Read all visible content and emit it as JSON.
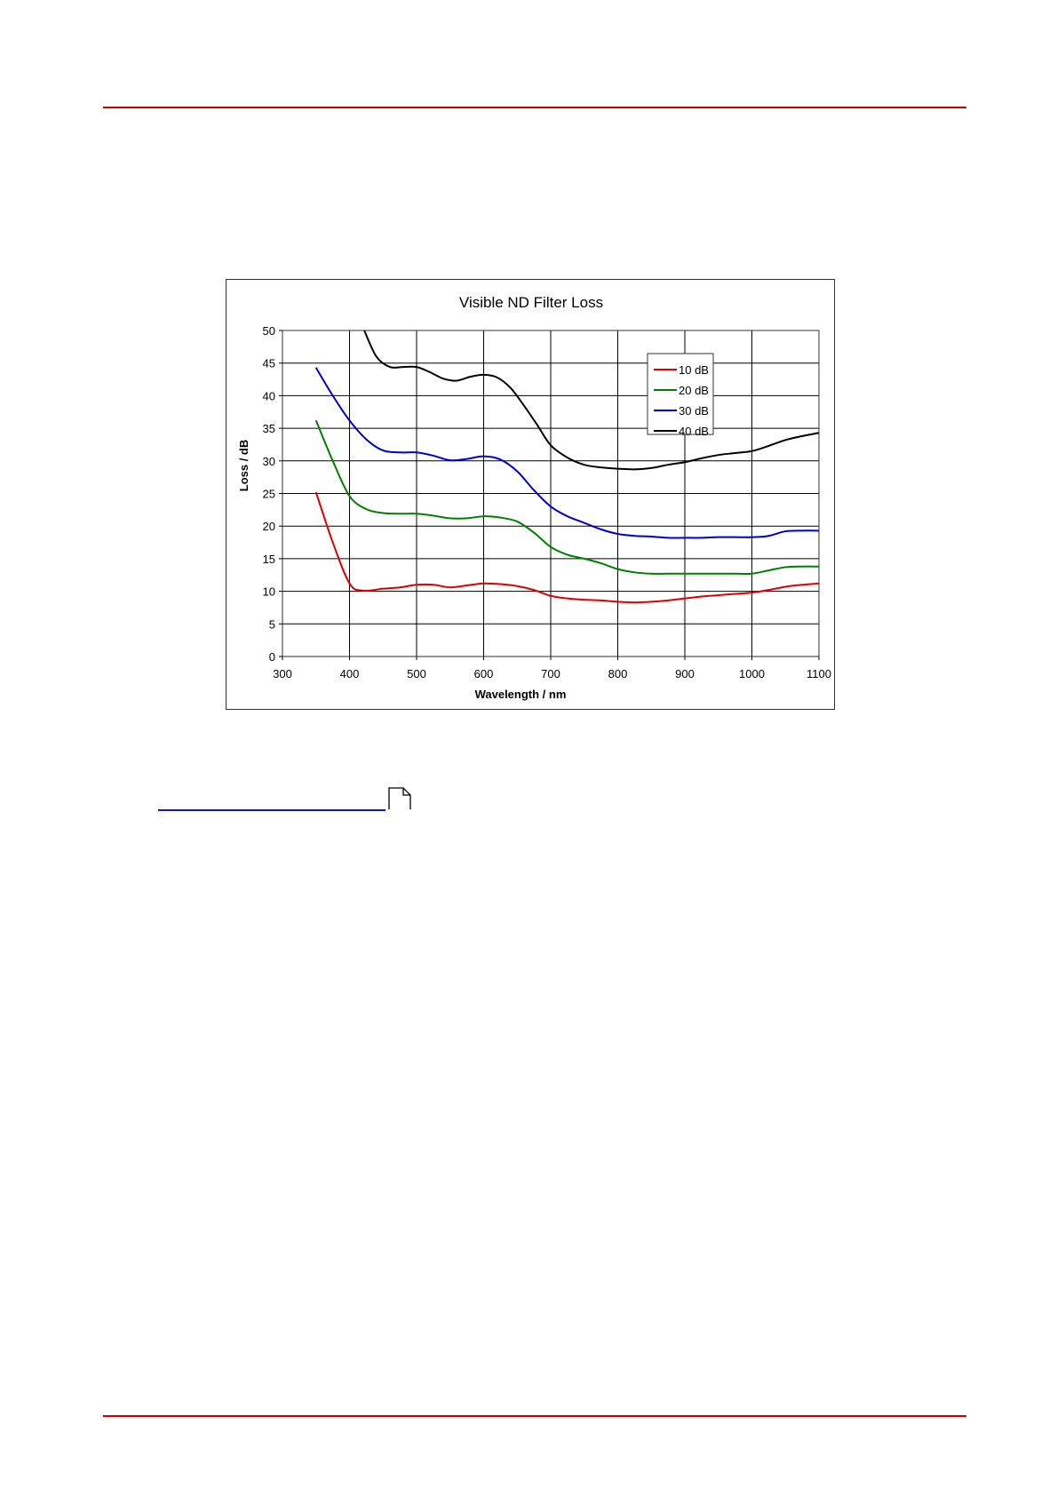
{
  "colors": {
    "rule": "#cc0000",
    "footnote_rule": "#1a1a9a",
    "series": [
      "#dd0000",
      "#008000",
      "#0000cc",
      "#000000"
    ]
  },
  "icons": {
    "footnote": "document-icon"
  },
  "chart_data": {
    "type": "line",
    "title": "Visible ND Filter Loss",
    "xlabel": "Wavelength / nm",
    "ylabel": "Loss / dB",
    "xlim": [
      300,
      1100
    ],
    "ylim": [
      0,
      50
    ],
    "xticks": [
      300,
      400,
      500,
      600,
      700,
      800,
      900,
      1000,
      1100
    ],
    "yticks": [
      0,
      5,
      10,
      15,
      20,
      25,
      30,
      35,
      40,
      45,
      50
    ],
    "grid": true,
    "legend_position": "top-right",
    "series": [
      {
        "name": "10 dB",
        "color": "#dd0000",
        "points": [
          [
            350,
            25.2
          ],
          [
            375,
            17.5
          ],
          [
            400,
            11.2
          ],
          [
            420,
            10.1
          ],
          [
            450,
            10.4
          ],
          [
            475,
            10.6
          ],
          [
            500,
            11.0
          ],
          [
            525,
            11.0
          ],
          [
            550,
            10.6
          ],
          [
            575,
            10.9
          ],
          [
            600,
            11.2
          ],
          [
            625,
            11.1
          ],
          [
            650,
            10.8
          ],
          [
            675,
            10.2
          ],
          [
            700,
            9.3
          ],
          [
            725,
            8.9
          ],
          [
            750,
            8.7
          ],
          [
            775,
            8.6
          ],
          [
            800,
            8.4
          ],
          [
            825,
            8.3
          ],
          [
            850,
            8.4
          ],
          [
            875,
            8.6
          ],
          [
            900,
            8.9
          ],
          [
            925,
            9.2
          ],
          [
            950,
            9.4
          ],
          [
            975,
            9.6
          ],
          [
            1000,
            9.8
          ],
          [
            1025,
            10.2
          ],
          [
            1050,
            10.7
          ],
          [
            1075,
            11.0
          ],
          [
            1100,
            11.2
          ]
        ]
      },
      {
        "name": "20 dB",
        "color": "#008000",
        "points": [
          [
            350,
            36.2
          ],
          [
            375,
            30.0
          ],
          [
            400,
            24.6
          ],
          [
            425,
            22.6
          ],
          [
            450,
            22.0
          ],
          [
            475,
            21.9
          ],
          [
            500,
            21.9
          ],
          [
            525,
            21.6
          ],
          [
            550,
            21.2
          ],
          [
            575,
            21.2
          ],
          [
            600,
            21.5
          ],
          [
            625,
            21.3
          ],
          [
            650,
            20.7
          ],
          [
            675,
            19.0
          ],
          [
            700,
            16.8
          ],
          [
            725,
            15.6
          ],
          [
            750,
            15.0
          ],
          [
            775,
            14.3
          ],
          [
            800,
            13.4
          ],
          [
            825,
            12.9
          ],
          [
            850,
            12.7
          ],
          [
            875,
            12.7
          ],
          [
            900,
            12.7
          ],
          [
            925,
            12.7
          ],
          [
            950,
            12.7
          ],
          [
            975,
            12.7
          ],
          [
            1000,
            12.7
          ],
          [
            1025,
            13.2
          ],
          [
            1050,
            13.7
          ],
          [
            1075,
            13.8
          ],
          [
            1100,
            13.8
          ]
        ]
      },
      {
        "name": "30 dB",
        "color": "#0000cc",
        "points": [
          [
            350,
            44.3
          ],
          [
            375,
            40.0
          ],
          [
            400,
            36.2
          ],
          [
            425,
            33.3
          ],
          [
            450,
            31.6
          ],
          [
            475,
            31.3
          ],
          [
            500,
            31.3
          ],
          [
            525,
            30.8
          ],
          [
            550,
            30.1
          ],
          [
            575,
            30.3
          ],
          [
            600,
            30.7
          ],
          [
            625,
            30.2
          ],
          [
            650,
            28.4
          ],
          [
            675,
            25.5
          ],
          [
            700,
            23.0
          ],
          [
            725,
            21.5
          ],
          [
            750,
            20.5
          ],
          [
            775,
            19.5
          ],
          [
            800,
            18.8
          ],
          [
            825,
            18.5
          ],
          [
            850,
            18.4
          ],
          [
            875,
            18.2
          ],
          [
            900,
            18.2
          ],
          [
            925,
            18.2
          ],
          [
            950,
            18.3
          ],
          [
            975,
            18.3
          ],
          [
            1000,
            18.3
          ],
          [
            1025,
            18.5
          ],
          [
            1050,
            19.2
          ],
          [
            1075,
            19.3
          ],
          [
            1100,
            19.3
          ]
        ]
      },
      {
        "name": "40 dB",
        "color": "#000000",
        "points": [
          [
            422,
            50.0
          ],
          [
            440,
            46.0
          ],
          [
            460,
            44.4
          ],
          [
            480,
            44.4
          ],
          [
            500,
            44.4
          ],
          [
            520,
            43.6
          ],
          [
            540,
            42.6
          ],
          [
            560,
            42.3
          ],
          [
            580,
            42.9
          ],
          [
            600,
            43.2
          ],
          [
            620,
            42.8
          ],
          [
            640,
            41.2
          ],
          [
            660,
            38.5
          ],
          [
            680,
            35.5
          ],
          [
            700,
            32.4
          ],
          [
            725,
            30.5
          ],
          [
            750,
            29.4
          ],
          [
            775,
            29.0
          ],
          [
            800,
            28.8
          ],
          [
            825,
            28.7
          ],
          [
            850,
            28.9
          ],
          [
            875,
            29.4
          ],
          [
            900,
            29.8
          ],
          [
            925,
            30.4
          ],
          [
            950,
            30.9
          ],
          [
            975,
            31.2
          ],
          [
            1000,
            31.5
          ],
          [
            1025,
            32.3
          ],
          [
            1050,
            33.2
          ],
          [
            1075,
            33.8
          ],
          [
            1100,
            34.3
          ]
        ]
      }
    ]
  }
}
